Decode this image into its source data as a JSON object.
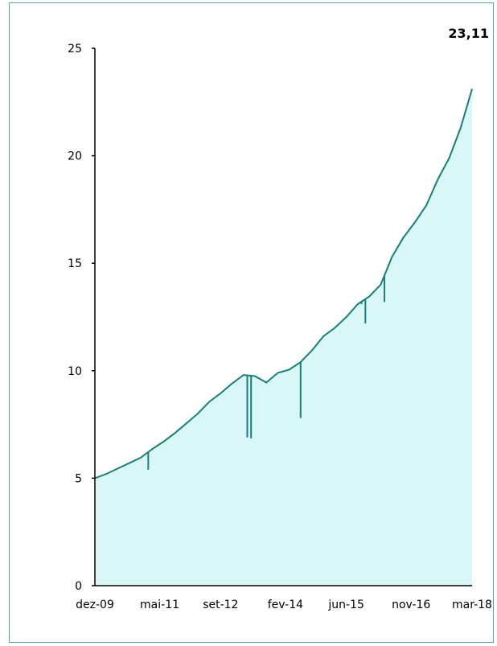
{
  "chart_data": {
    "type": "area",
    "last_value_label": "23,11",
    "ylim": [
      0,
      25
    ],
    "yticks": [
      {
        "value": 0,
        "label": "0"
      },
      {
        "value": 5,
        "label": "5"
      },
      {
        "value": 10,
        "label": "10"
      },
      {
        "value": 15,
        "label": "15"
      },
      {
        "value": 20,
        "label": "20"
      },
      {
        "value": 25,
        "label": "25"
      }
    ],
    "xlim": [
      "2009-12",
      "2018-03"
    ],
    "xticks": [
      {
        "value": "2009-12",
        "label": "dez-09"
      },
      {
        "value": "2011-05",
        "label": "mai-11"
      },
      {
        "value": "2012-09",
        "label": "set-12"
      },
      {
        "value": "2014-02",
        "label": "fev-14"
      },
      {
        "value": "2015-06",
        "label": "jun-15"
      },
      {
        "value": "2016-11",
        "label": "nov-16"
      },
      {
        "value": "2018-03",
        "label": "mar-18"
      }
    ],
    "series": [
      {
        "x": [
          "2009-12",
          "2010-03",
          "2010-06",
          "2010-09",
          "2010-12",
          "2011-03",
          "2011-06",
          "2011-09",
          "2011-12",
          "2012-03",
          "2012-06",
          "2012-09",
          "2012-12",
          "2013-03",
          "2013-06",
          "2013-09",
          "2013-12",
          "2014-03",
          "2014-06",
          "2014-09",
          "2014-12",
          "2015-03",
          "2015-06",
          "2015-09",
          "2015-12",
          "2016-03",
          "2016-06",
          "2016-09",
          "2016-12",
          "2017-03",
          "2017-06",
          "2017-09",
          "2017-12",
          "2018-03"
        ],
        "values": [
          5.0,
          5.2,
          5.45,
          5.7,
          5.95,
          6.35,
          6.7,
          7.1,
          7.55,
          8.0,
          8.55,
          8.95,
          9.4,
          9.8,
          9.75,
          9.45,
          9.9,
          10.05,
          10.4,
          10.95,
          11.6,
          12.0,
          12.5,
          13.1,
          13.45,
          14.0,
          15.3,
          16.2,
          16.9,
          17.7,
          18.9,
          19.9,
          21.3,
          23.11
        ]
      }
    ],
    "spikes": [
      {
        "x": "2011-02",
        "value": 5.4
      },
      {
        "x": "2013-04",
        "value": 6.9
      },
      {
        "x": "2013-05",
        "value": 6.85
      },
      {
        "x": "2014-06",
        "value": 7.8
      },
      {
        "x": "2015-10",
        "value": 13.1
      },
      {
        "x": "2015-11",
        "value": 12.2
      },
      {
        "x": "2016-04",
        "value": 13.2
      }
    ],
    "colors": {
      "line": "#1a7f74",
      "fill": "#d9f7f7",
      "axis": "#000000"
    }
  }
}
